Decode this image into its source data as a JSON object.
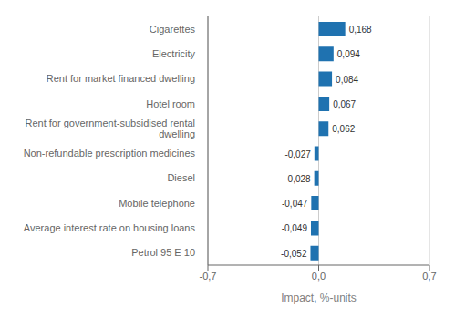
{
  "chart_data": {
    "type": "bar",
    "orientation": "horizontal",
    "categories": [
      "Petrol 95 E 10",
      "Average interest rate on housing loans",
      "Mobile telephone",
      "Diesel",
      "Non-refundable prescription medicines",
      "Rent for government-subsidised rental\ndwelling",
      "Hotel room",
      "Rent for market financed dwelling",
      "Electricity",
      "Cigarettes"
    ],
    "values": [
      -0.052,
      -0.049,
      -0.047,
      -0.028,
      -0.027,
      0.062,
      0.067,
      0.084,
      0.094,
      0.168
    ],
    "value_labels": [
      "-0,052",
      "-0,049",
      "-0,047",
      "-0,028",
      "-0,027",
      "0,062",
      "0,067",
      "0,084",
      "0,094",
      "0,168"
    ],
    "data_labels": true,
    "color": "#1f72b0",
    "xlabel": "Impact, %-units",
    "xlim": [
      -0.7,
      0.7
    ],
    "xticks": [
      {
        "value": -0.7,
        "label": "-0,7"
      },
      {
        "value": 0.0,
        "label": "0,0"
      },
      {
        "value": 0.7,
        "label": "0,7"
      }
    ],
    "grid": true
  }
}
